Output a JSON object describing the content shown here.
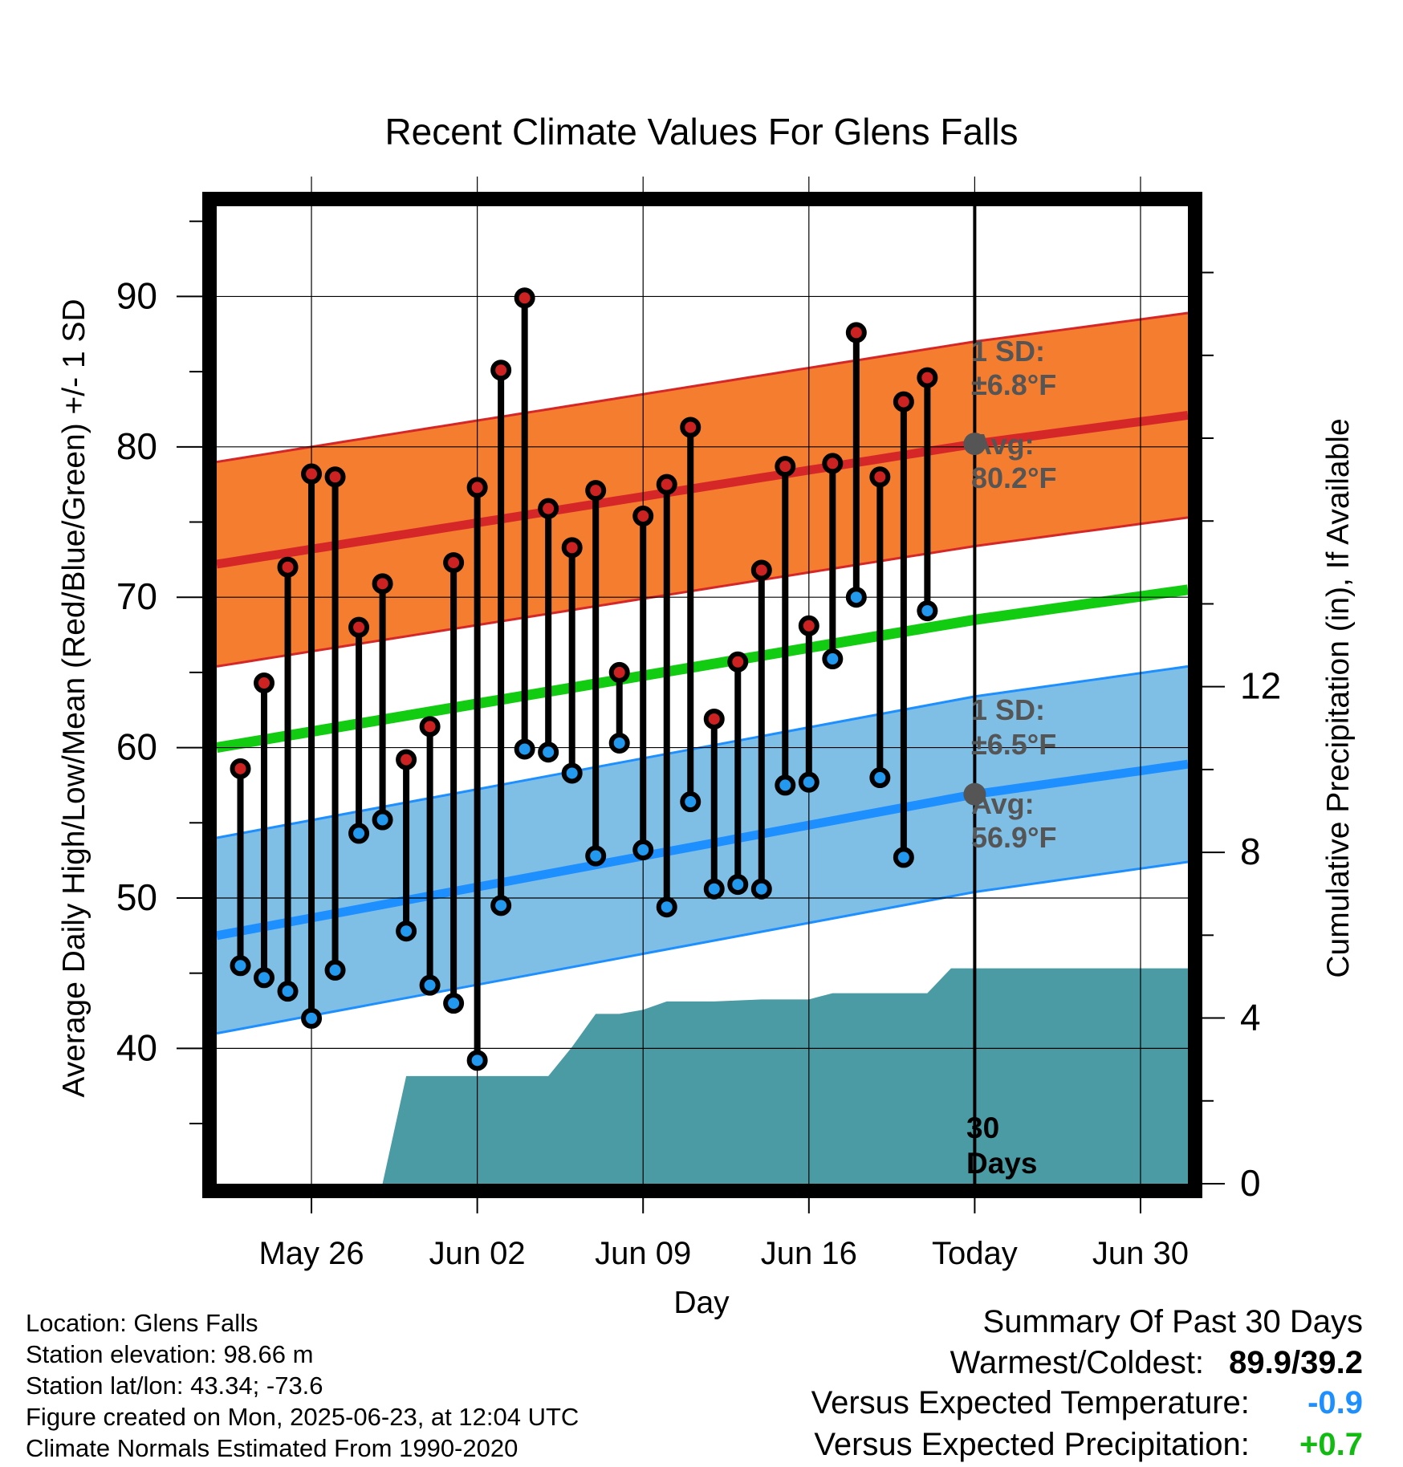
{
  "chart_data": {
    "type": "line",
    "title": "Recent Climate Values For Glens Falls",
    "xlabel": "Day",
    "ylabel": "Average Daily High/Low/Mean (Red/Blue/Green) +/- 1 SD",
    "y2label": "Cumulative Precipitation (in), If Available",
    "x_ticks": [
      "May 26",
      "Jun 02",
      "Jun 09",
      "Jun 16",
      "Today",
      "Jun 30"
    ],
    "x_range": [
      "2025-05-22",
      "2025-07-02"
    ],
    "ylim": [
      31,
      96
    ],
    "y_ticks": [
      40,
      50,
      60,
      70,
      80,
      90
    ],
    "y2lim": [
      0,
      23.6
    ],
    "y2_ticks": [
      0,
      4,
      8,
      12
    ],
    "grid": true,
    "normals": {
      "x": [
        "2025-05-22",
        "2025-06-23",
        "2025-07-02"
      ],
      "high_avg": [
        72.2,
        80.2,
        82.1
      ],
      "high_sd": 6.8,
      "low_avg": [
        47.5,
        56.9,
        58.9
      ],
      "low_sd": 6.5,
      "mean_avg": [
        60.0,
        68.5,
        70.5
      ]
    },
    "series": [
      {
        "name": "High",
        "x": [
          "2025-05-23",
          "2025-05-24",
          "2025-05-25",
          "2025-05-26",
          "2025-05-27",
          "2025-05-28",
          "2025-05-29",
          "2025-05-30",
          "2025-05-31",
          "2025-06-01",
          "2025-06-02",
          "2025-06-03",
          "2025-06-04",
          "2025-06-05",
          "2025-06-06",
          "2025-06-07",
          "2025-06-08",
          "2025-06-09",
          "2025-06-10",
          "2025-06-11",
          "2025-06-12",
          "2025-06-13",
          "2025-06-14",
          "2025-06-15",
          "2025-06-16",
          "2025-06-17",
          "2025-06-18",
          "2025-06-19",
          "2025-06-20",
          "2025-06-21",
          "2025-06-22"
        ],
        "values": [
          58.6,
          64.3,
          72.0,
          78.2,
          78.0,
          68.0,
          70.9,
          59.2,
          61.4,
          72.3,
          77.3,
          85.1,
          89.9,
          75.9,
          73.3,
          77.1,
          65.0,
          75.4,
          77.5,
          81.3,
          61.9,
          65.7,
          71.8,
          78.7,
          68.1,
          78.9,
          87.6,
          78.0,
          83.0,
          84.6,
          null
        ]
      },
      {
        "name": "Low",
        "x": [
          "2025-05-23",
          "2025-05-24",
          "2025-05-25",
          "2025-05-26",
          "2025-05-27",
          "2025-05-28",
          "2025-05-29",
          "2025-05-30",
          "2025-05-31",
          "2025-06-01",
          "2025-06-02",
          "2025-06-03",
          "2025-06-04",
          "2025-06-05",
          "2025-06-06",
          "2025-06-07",
          "2025-06-08",
          "2025-06-09",
          "2025-06-10",
          "2025-06-11",
          "2025-06-12",
          "2025-06-13",
          "2025-06-14",
          "2025-06-15",
          "2025-06-16",
          "2025-06-17",
          "2025-06-18",
          "2025-06-19",
          "2025-06-20",
          "2025-06-21",
          "2025-06-22"
        ],
        "values": [
          45.5,
          44.7,
          43.8,
          42.0,
          45.2,
          54.3,
          55.2,
          47.8,
          44.2,
          43.0,
          39.2,
          49.5,
          59.9,
          59.7,
          58.3,
          52.8,
          60.3,
          53.2,
          49.4,
          56.4,
          50.6,
          50.9,
          50.6,
          57.5,
          57.7,
          65.9,
          70.0,
          58.0,
          52.7,
          69.1,
          null
        ]
      },
      {
        "name": "Cumulative Precipitation",
        "x": [
          "2025-05-22",
          "2025-05-28",
          "2025-05-29",
          "2025-05-30",
          "2025-06-01",
          "2025-06-03",
          "2025-06-04",
          "2025-06-05",
          "2025-06-06",
          "2025-06-07",
          "2025-06-08",
          "2025-06-09",
          "2025-06-10",
          "2025-06-12",
          "2025-06-14",
          "2025-06-15",
          "2025-06-16",
          "2025-06-17",
          "2025-06-18",
          "2025-06-20",
          "2025-06-21",
          "2025-06-22",
          "2025-07-02"
        ],
        "values": [
          0,
          0,
          0,
          2.6,
          2.6,
          2.6,
          2.6,
          2.6,
          3.3,
          4.1,
          4.1,
          4.2,
          4.4,
          4.4,
          4.45,
          4.45,
          4.45,
          4.6,
          4.6,
          4.6,
          4.6,
          5.2,
          5.2
        ]
      }
    ],
    "annotations": {
      "high": {
        "sd_label": "1 SD:",
        "sd_value": "±6.8°F",
        "avg_label": "Avg:",
        "avg_value": "80.2°F"
      },
      "low": {
        "sd_label": "1 SD:",
        "sd_value": "±6.5°F",
        "avg_label": "Avg:",
        "avg_value": "56.9°F"
      },
      "days_num": "30",
      "days_label": "Days"
    },
    "colors": {
      "high_band": "#f47d30",
      "high_line": "#d62728",
      "low_band": "#7fbfe6",
      "low_line": "#1e8fff",
      "mean_line": "#11cc11",
      "precip": "#4a9ba4",
      "high_marker": "#cc2222",
      "low_marker": "#2299ee",
      "annotation": "#555555"
    }
  },
  "info": {
    "location": "Location: Glens Falls",
    "elevation": "Station elevation: 98.66 m",
    "latlon": "Station lat/lon: 43.34; -73.6",
    "created": "Figure created on Mon, 2025-06-23, at 12:04 UTC",
    "normals": "Climate Normals Estimated From 1990-2020"
  },
  "summary": {
    "title": "Summary Of Past 30 Days",
    "warm_cold_label": "Warmest/Coldest:",
    "warm_cold_value": "89.9/39.2",
    "temp_label": "Versus Expected Temperature:",
    "temp_value": "-0.9",
    "temp_color": "#1e8fff",
    "precip_label": "Versus Expected Precipitation:",
    "precip_value": "+0.7",
    "precip_color": "#11bb11"
  }
}
